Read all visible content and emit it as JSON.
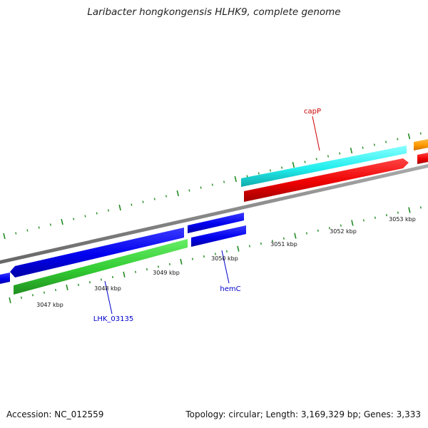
{
  "title": "Laribacter hongkongensis HLHK9, complete genome",
  "footer": {
    "accession": "Accession: NC_012559",
    "stats": "Topology: circular; Length: 3,169,329 bp; Genes: 3,333"
  },
  "colors": {
    "backbone": "#888888",
    "tick": "#228b22",
    "gene_blue": "#0000ee",
    "gene_green": "#33cc33",
    "gene_cyan": "#22eeee",
    "gene_red": "#ee0000",
    "gene_orange": "#ff9900",
    "callout_blue": "#0000cc",
    "callout_red": "#cc0000"
  },
  "scale": {
    "unit": "kbp",
    "labels": [
      "3047 kbp",
      "3048 kbp",
      "3049 kbp",
      "3050 kbp",
      "3051 kbp",
      "3052 kbp",
      "3053 kbp"
    ]
  },
  "callouts": [
    {
      "name": "capP",
      "color": "callout_red"
    },
    {
      "name": "hemC",
      "color": "callout_blue"
    },
    {
      "name": "LHK_03135",
      "color": "callout_blue"
    }
  ]
}
